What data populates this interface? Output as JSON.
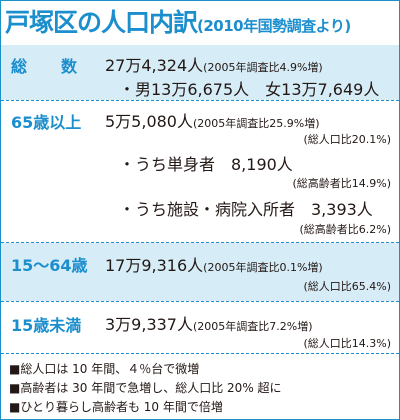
{
  "header": {
    "title": "戸塚区の人口内訳",
    "subtitle": "(2010年国勢調査より)"
  },
  "total": {
    "label": "総数",
    "value": "27万4,324人",
    "note": "(2005年調査比4.9%増)",
    "gender": "・男13万6,675人　女13万7,649人"
  },
  "elderly": {
    "label": "65歳以上",
    "value": "5万5,080人",
    "note": "(2005年調査比25.9%増)",
    "ratio": "(総人口比20.1%)",
    "alone": "・うち単身者　8,190人",
    "alone_ratio": "(総高齢者比14.9%)",
    "facility": "・うち施設・病院入所者　3,393人",
    "facility_ratio": "(総高齢者比6.2%)"
  },
  "working": {
    "label": "15〜64歳",
    "value": "17万9,316人",
    "note": "(2005年調査比0.1%増)",
    "ratio": "(総人口比65.4%)"
  },
  "children": {
    "label": "15歳未満",
    "value": "3万9,337人",
    "note": "(2005年調査比7.2%増)",
    "ratio": "(総人口比14.3%)"
  },
  "notes": [
    "■総人口は 10 年間、４％台で微増",
    "■高齢者は 30 年間で急増し、総人口比 20% 超に",
    "■ひとり暮らし高齢者も 10 年間で倍増"
  ]
}
